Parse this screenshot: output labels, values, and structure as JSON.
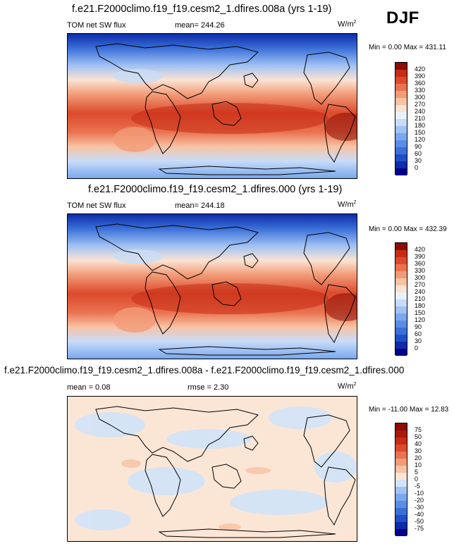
{
  "season": "DJF",
  "panels": [
    {
      "title": "f.e21.F2000climo.f19_f19.cesm2_1.dfires.008a (yrs 1-19)",
      "variable": "TOM net SW flux",
      "stat": "mean= 244.26",
      "units": "W/m",
      "units_exp": "2",
      "minmax": "Min =   0.00 Max = 431.11"
    },
    {
      "title": "f.e21.F2000climo.f19_f19.cesm2_1.dfires.000 (yrs 1-19)",
      "variable": "TOM net SW flux",
      "stat": "mean= 244.18",
      "units": "W/m",
      "units_exp": "2",
      "minmax": "Min =   0.00 Max = 432.39"
    },
    {
      "title": "f.e21.F2000climo.f19_f19.cesm2_1.dfires.008a - f.e21.F2000climo.f19_f19.cesm2_1.dfires.000",
      "stat_left": "mean =   0.08",
      "stat_mid": "rmse =   2.30",
      "units": "W/m",
      "units_exp": "2",
      "minmax": "Min = -11.00 Max = 12.83"
    }
  ],
  "chart_data": [
    {
      "type": "heatmap",
      "title": "f.e21.F2000climo.f19_f19.cesm2_1.dfires.008a (yrs 1-19)",
      "variable": "TOM net SW flux",
      "units": "W/m2",
      "mean": 244.26,
      "min": 0.0,
      "max": 431.11,
      "colorbar_levels": [
        0,
        30,
        60,
        90,
        120,
        150,
        180,
        210,
        240,
        270,
        300,
        330,
        360,
        390,
        420
      ],
      "colorbar_colors": [
        "#00008b",
        "#0d2ca8",
        "#1f4fc7",
        "#3a6fd8",
        "#5a8de6",
        "#7aa8ee",
        "#a0c2f4",
        "#c8dcf8",
        "#eaf1fb",
        "#fbe3d3",
        "#f8c2a3",
        "#f29b78",
        "#ea7250",
        "#dc4a2c",
        "#c62c14",
        "#8b0d04"
      ],
      "zonal_pattern": "low (blue) near poles, high (red) in tropics"
    },
    {
      "type": "heatmap",
      "title": "f.e21.F2000climo.f19_f19.cesm2_1.dfires.000 (yrs 1-19)",
      "variable": "TOM net SW flux",
      "units": "W/m2",
      "mean": 244.18,
      "min": 0.0,
      "max": 432.39,
      "colorbar_levels": [
        0,
        30,
        60,
        90,
        120,
        150,
        180,
        210,
        240,
        270,
        300,
        330,
        360,
        390,
        420
      ],
      "colorbar_colors": [
        "#00008b",
        "#0d2ca8",
        "#1f4fc7",
        "#3a6fd8",
        "#5a8de6",
        "#7aa8ee",
        "#a0c2f4",
        "#c8dcf8",
        "#eaf1fb",
        "#fbe3d3",
        "#f8c2a3",
        "#f29b78",
        "#ea7250",
        "#dc4a2c",
        "#c62c14",
        "#8b0d04"
      ],
      "zonal_pattern": "low (blue) near poles, high (red) in tropics"
    },
    {
      "type": "heatmap",
      "title": "f.e21.F2000climo.f19_f19.cesm2_1.dfires.008a - f.e21.F2000climo.f19_f19.cesm2_1.dfires.000",
      "units": "W/m2",
      "mean": 0.08,
      "rmse": 2.3,
      "min": -11.0,
      "max": 12.83,
      "colorbar_levels": [
        -75,
        -50,
        -40,
        -30,
        -20,
        -10,
        -5,
        0,
        5,
        10,
        20,
        30,
        40,
        50,
        75
      ],
      "colorbar_colors": [
        "#00008b",
        "#0d2ca8",
        "#1f4fc7",
        "#3a6fd8",
        "#5a8de6",
        "#7aa8ee",
        "#a0c2f4",
        "#d4e4f7",
        "#fbe6d6",
        "#f8c2a3",
        "#f29b78",
        "#ea7250",
        "#dc4a2c",
        "#c62c14",
        "#a8190a",
        "#8b0d04"
      ],
      "field_pattern": "near zero everywhere, light blue and light orange patches"
    }
  ]
}
